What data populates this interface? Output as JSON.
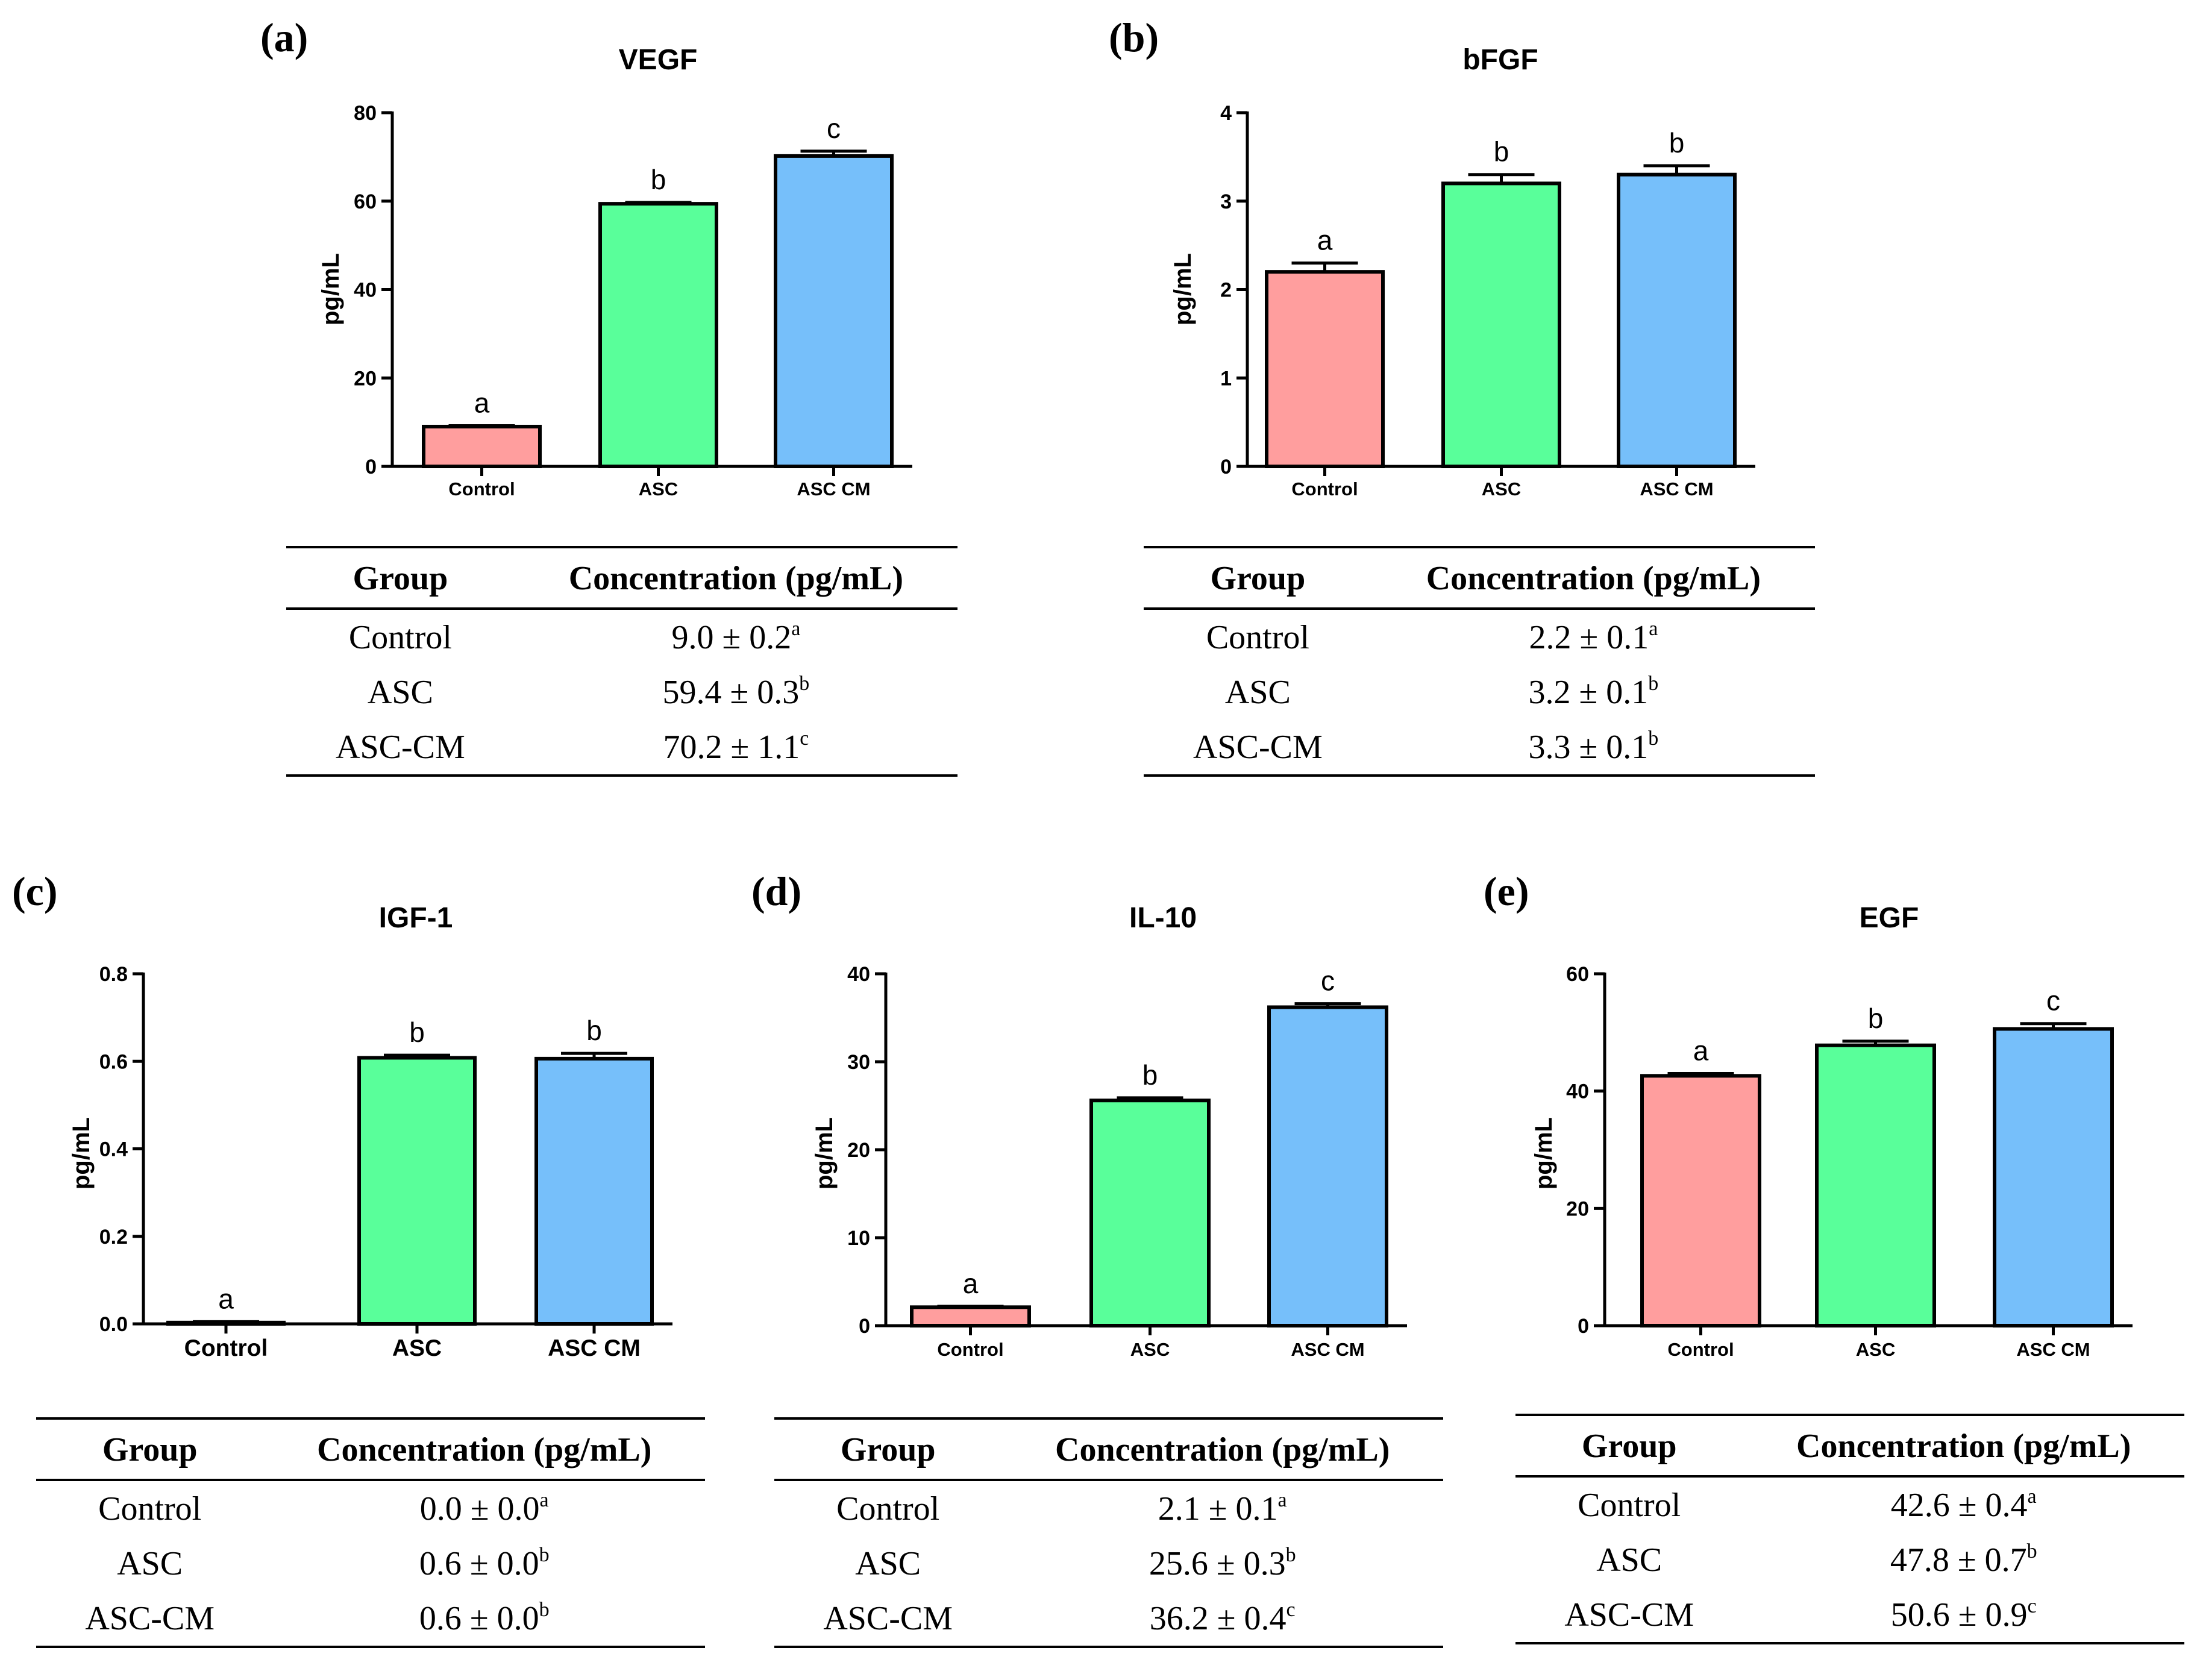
{
  "panels": [
    {
      "letter": "(a)",
      "chart_data": {
        "type": "bar",
        "title": "VEGF",
        "xlabel": "",
        "ylabel": "pg/mL",
        "categories": [
          "Control",
          "ASC",
          "ASC CM"
        ],
        "values": [
          9.0,
          59.4,
          70.2
        ],
        "errors": [
          0.2,
          0.3,
          1.1
        ],
        "significance": [
          "a",
          "b",
          "c"
        ],
        "ylim": [
          0,
          80
        ],
        "yticks": [
          "0",
          "20",
          "40",
          "60",
          "80"
        ],
        "colors": [
          "#FF9E9E",
          "#59FF9A",
          "#76BFFA"
        ]
      },
      "table": {
        "headers": [
          "Group",
          "Concentration (pg/mL)"
        ],
        "rows": [
          {
            "group": "Control",
            "value": "9.0 ± 0.2",
            "sup": "a"
          },
          {
            "group": "ASC",
            "value": "59.4 ± 0.3",
            "sup": "b"
          },
          {
            "group": "ASC-CM",
            "value": "70.2 ± 1.1",
            "sup": "c"
          }
        ]
      }
    },
    {
      "letter": "(b)",
      "chart_data": {
        "type": "bar",
        "title": "bFGF",
        "xlabel": "",
        "ylabel": "pg/mL",
        "categories": [
          "Control",
          "ASC",
          "ASC CM"
        ],
        "values": [
          2.2,
          3.2,
          3.3
        ],
        "errors": [
          0.1,
          0.1,
          0.1
        ],
        "significance": [
          "a",
          "b",
          "b"
        ],
        "ylim": [
          0,
          4
        ],
        "yticks": [
          "0",
          "1",
          "2",
          "3",
          "4"
        ],
        "colors": [
          "#FF9E9E",
          "#59FF9A",
          "#76BFFA"
        ]
      },
      "table": {
        "headers": [
          "Group",
          "Concentration (pg/mL)"
        ],
        "rows": [
          {
            "group": "Control",
            "value": "2.2 ± 0.1",
            "sup": "a"
          },
          {
            "group": "ASC",
            "value": "3.2 ± 0.1",
            "sup": "b"
          },
          {
            "group": "ASC-CM",
            "value": "3.3 ± 0.1",
            "sup": "b"
          }
        ]
      }
    },
    {
      "letter": "(c)",
      "chart_data": {
        "type": "bar",
        "title": "IGF-1",
        "xlabel": "",
        "ylabel": "pg/mL",
        "categories": [
          "Control",
          "ASC",
          "ASC CM"
        ],
        "values": [
          0.003,
          0.608,
          0.606
        ],
        "errors": [
          0.002,
          0.006,
          0.012
        ],
        "significance": [
          "a",
          "b",
          "b"
        ],
        "ylim": [
          0,
          0.8
        ],
        "yticks": [
          "0.0",
          "0.2",
          "0.4",
          "0.6",
          "0.8"
        ],
        "colors": [
          "#FF9E9E",
          "#59FF9A",
          "#76BFFA"
        ]
      },
      "table": {
        "headers": [
          "Group",
          "Concentration (pg/mL)"
        ],
        "rows": [
          {
            "group": "Control",
            "value": "0.0 ± 0.0",
            "sup": "a"
          },
          {
            "group": "ASC",
            "value": "0.6 ± 0.0",
            "sup": "b"
          },
          {
            "group": "ASC-CM",
            "value": "0.6 ± 0.0",
            "sup": "b"
          }
        ]
      }
    },
    {
      "letter": "(d)",
      "chart_data": {
        "type": "bar",
        "title": "IL-10",
        "xlabel": "",
        "ylabel": "pg/mL",
        "categories": [
          "Control",
          "ASC",
          "ASC CM"
        ],
        "values": [
          2.1,
          25.6,
          36.2
        ],
        "errors": [
          0.1,
          0.3,
          0.4
        ],
        "significance": [
          "a",
          "b",
          "c"
        ],
        "ylim": [
          0,
          40
        ],
        "yticks": [
          "0",
          "10",
          "20",
          "30",
          "40"
        ],
        "colors": [
          "#FF9E9E",
          "#59FF9A",
          "#76BFFA"
        ]
      },
      "table": {
        "headers": [
          "Group",
          "Concentration (pg/mL)"
        ],
        "rows": [
          {
            "group": "Control",
            "value": "2.1 ± 0.1",
            "sup": "a"
          },
          {
            "group": "ASC",
            "value": "25.6 ± 0.3",
            "sup": "b"
          },
          {
            "group": "ASC-CM",
            "value": "36.2 ± 0.4",
            "sup": "c"
          }
        ]
      }
    },
    {
      "letter": "(e)",
      "chart_data": {
        "type": "bar",
        "title": "EGF",
        "xlabel": "",
        "ylabel": "pg/mL",
        "categories": [
          "Control",
          "ASC",
          "ASC CM"
        ],
        "values": [
          42.6,
          47.8,
          50.6
        ],
        "errors": [
          0.4,
          0.7,
          0.9
        ],
        "significance": [
          "a",
          "b",
          "c"
        ],
        "ylim": [
          0,
          60
        ],
        "yticks": [
          "0",
          "20",
          "40",
          "60"
        ],
        "colors": [
          "#FF9E9E",
          "#59FF9A",
          "#76BFFA"
        ]
      },
      "table": {
        "headers": [
          "Group",
          "Concentration (pg/mL)"
        ],
        "rows": [
          {
            "group": "Control",
            "value": "42.6 ± 0.4",
            "sup": "a"
          },
          {
            "group": "ASC",
            "value": "47.8 ± 0.7",
            "sup": "b"
          },
          {
            "group": "ASC-CM",
            "value": "50.6 ± 0.9",
            "sup": "c"
          }
        ]
      }
    }
  ]
}
